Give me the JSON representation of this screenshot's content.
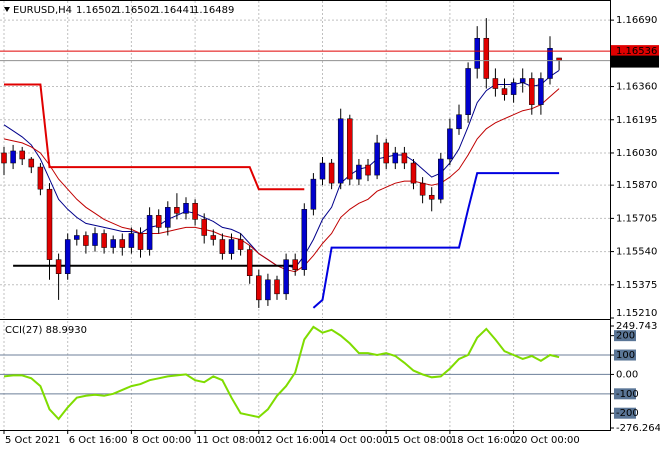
{
  "chart_data": [
    {
      "type": "candlestick",
      "title": "EURUSD,H4",
      "categories": [
        "5 Oct 2021",
        null,
        null,
        null,
        null,
        null,
        null,
        "6 Oct 16:00",
        null,
        null,
        null,
        null,
        null,
        null,
        "8 Oct 00:00",
        null,
        null,
        null,
        null,
        null,
        null,
        "11 Oct 08:00",
        null,
        null,
        null,
        null,
        null,
        null,
        "12 Oct 16:00",
        null,
        null,
        null,
        null,
        null,
        null,
        "14 Oct 00:00",
        null,
        null,
        null,
        null,
        null,
        null,
        "15 Oct 08:00",
        null,
        null,
        null,
        null,
        null,
        null,
        "18 Oct 16:00",
        null,
        null,
        null,
        null,
        null,
        null,
        "20 Oct 00:00",
        null,
        null,
        null,
        null,
        null
      ],
      "open": [
        1.1603,
        1.1598,
        1.1604,
        1.16,
        1.1596,
        1.1585,
        1.155,
        1.1543,
        1.156,
        1.1562,
        1.1557,
        1.1563,
        1.1556,
        1.156,
        1.1556,
        1.1563,
        1.1555,
        1.1572,
        1.1566,
        1.1576,
        1.1573,
        1.1578,
        1.157,
        1.1562,
        1.156,
        1.1553,
        1.156,
        1.1555,
        1.1542,
        1.153,
        1.154,
        1.1533,
        1.155,
        1.1545,
        1.1575,
        1.159,
        1.1598,
        1.1588,
        1.162,
        1.159,
        1.1597,
        1.1592,
        1.1608,
        1.1598,
        1.1603,
        1.1598,
        1.1588,
        1.1582,
        1.158,
        1.16,
        1.1615,
        1.1622,
        1.1645,
        1.166,
        1.164,
        1.1635,
        1.1632,
        1.1638,
        1.164,
        1.1627,
        1.164,
        1.16502
      ],
      "high": [
        1.1606,
        1.1607,
        1.1606,
        1.1601,
        1.1598,
        1.1588,
        1.1553,
        1.1563,
        1.1565,
        1.1564,
        1.1566,
        1.1565,
        1.1562,
        1.1563,
        1.1566,
        1.1566,
        1.1576,
        1.1575,
        1.1579,
        1.1583,
        1.1581,
        1.158,
        1.1573,
        1.1565,
        1.1563,
        1.1563,
        1.1563,
        1.1557,
        1.1545,
        1.1543,
        1.1542,
        1.1553,
        1.1553,
        1.1578,
        1.1593,
        1.1601,
        1.16,
        1.1625,
        1.1622,
        1.16,
        1.16,
        1.1612,
        1.161,
        1.1606,
        1.1606,
        1.16,
        1.1591,
        1.1586,
        1.1603,
        1.162,
        1.1627,
        1.1648,
        1.1666,
        1.167,
        1.1645,
        1.164,
        1.164,
        1.1645,
        1.1643,
        1.1643,
        1.1661,
        1.16502
      ],
      "low": [
        1.1592,
        1.1595,
        1.1597,
        1.1593,
        1.1582,
        1.154,
        1.153,
        1.154,
        1.1557,
        1.1553,
        1.1554,
        1.1553,
        1.1553,
        1.1552,
        1.1553,
        1.1551,
        1.1552,
        1.1563,
        1.1562,
        1.157,
        1.157,
        1.1567,
        1.1558,
        1.1557,
        1.155,
        1.155,
        1.1552,
        1.1538,
        1.1526,
        1.1527,
        1.153,
        1.153,
        1.1542,
        1.1542,
        1.1572,
        1.1587,
        1.1585,
        1.1585,
        1.1587,
        1.1587,
        1.1589,
        1.159,
        1.1595,
        1.1595,
        1.1595,
        1.1585,
        1.1578,
        1.1574,
        1.1578,
        1.1597,
        1.1612,
        1.1618,
        1.164,
        1.1635,
        1.1631,
        1.1629,
        1.1628,
        1.1633,
        1.1622,
        1.1622,
        1.1637,
        1.16441
      ],
      "close": [
        1.1598,
        1.1604,
        1.16,
        1.1596,
        1.1585,
        1.155,
        1.1543,
        1.156,
        1.1562,
        1.1557,
        1.1563,
        1.1556,
        1.156,
        1.1556,
        1.1563,
        1.1555,
        1.1572,
        1.1566,
        1.1576,
        1.1573,
        1.1578,
        1.157,
        1.1562,
        1.156,
        1.1553,
        1.156,
        1.1555,
        1.1542,
        1.153,
        1.154,
        1.1533,
        1.155,
        1.1545,
        1.1575,
        1.159,
        1.1598,
        1.1588,
        1.162,
        1.159,
        1.1597,
        1.1592,
        1.1608,
        1.1598,
        1.1603,
        1.1598,
        1.1588,
        1.1582,
        1.158,
        1.16,
        1.1615,
        1.1622,
        1.1645,
        1.166,
        1.164,
        1.1635,
        1.1632,
        1.1638,
        1.164,
        1.1627,
        1.164,
        1.1655,
        1.16489
      ],
      "up_color": "#0000cd",
      "down_color": "#e00000",
      "lines": [
        {
          "color": "#00008b",
          "values": [
            1.1617,
            1.1614,
            1.1611,
            1.1607,
            1.16,
            1.159,
            1.158,
            1.1575,
            1.1571,
            1.1568,
            1.1567,
            1.1566,
            1.1565,
            1.1564,
            1.1564,
            1.1563,
            1.1566,
            1.1567,
            1.157,
            1.1572,
            1.1574,
            1.1573,
            1.1571,
            1.1569,
            1.1566,
            1.1565,
            1.1563,
            1.1558,
            1.1553,
            1.155,
            1.1547,
            1.1547,
            1.1546,
            1.1552,
            1.156,
            1.157,
            1.1576,
            1.1588,
            1.1592,
            1.1595,
            1.1596,
            1.16,
            1.1601,
            1.1602,
            1.1602,
            1.1599,
            1.1595,
            1.1591,
            1.1593,
            1.1598,
            1.1605,
            1.1616,
            1.1628,
            1.1634,
            1.1637,
            1.1637,
            1.1637,
            1.1638,
            1.1636,
            1.1637,
            1.1641,
            1.1644
          ]
        },
        {
          "color": "#c00000",
          "values": [
            1.161,
            1.1609,
            1.1608,
            1.1606,
            1.1603,
            1.1597,
            1.159,
            1.1585,
            1.158,
            1.1576,
            1.1573,
            1.157,
            1.1568,
            1.1566,
            1.1565,
            1.1563,
            1.1563,
            1.1563,
            1.1564,
            1.1565,
            1.1566,
            1.1566,
            1.1565,
            1.1564,
            1.1562,
            1.1561,
            1.156,
            1.1557,
            1.1553,
            1.155,
            1.1547,
            1.1545,
            1.1544,
            1.1547,
            1.1552,
            1.1558,
            1.1563,
            1.1571,
            1.1575,
            1.1578,
            1.158,
            1.1584,
            1.1586,
            1.1588,
            1.1589,
            1.1589,
            1.1588,
            1.1587,
            1.1588,
            1.1591,
            1.1595,
            1.1602,
            1.161,
            1.1615,
            1.1618,
            1.162,
            1.1622,
            1.1624,
            1.1625,
            1.1627,
            1.1631,
            1.1635
          ]
        },
        {
          "color": "#e00000",
          "width": 2,
          "values": [
            1.1637,
            1.1637,
            1.1637,
            1.1637,
            1.1637,
            1.1596,
            1.1596,
            1.1596,
            1.1596,
            1.1596,
            1.1596,
            1.1596,
            1.1596,
            1.1596,
            1.1596,
            1.1596,
            1.1596,
            1.1596,
            1.1596,
            1.1596,
            1.1596,
            1.1596,
            1.1596,
            1.1596,
            1.1596,
            1.1596,
            1.1596,
            1.1596,
            1.1585,
            1.1585,
            1.1585,
            1.1585,
            1.1585,
            1.1585,
            null,
            null,
            null,
            null,
            null,
            null,
            null,
            null,
            null,
            null,
            null,
            null,
            null,
            null,
            null,
            null,
            null,
            null,
            null,
            null,
            null,
            null,
            null,
            null,
            null,
            null,
            null,
            null
          ]
        },
        {
          "color": "#000000",
          "width": 2,
          "values": [
            null,
            1.1547,
            1.1547,
            1.1547,
            1.1547,
            1.1547,
            1.1547,
            1.1547,
            1.1547,
            1.1547,
            1.1547,
            1.1547,
            1.1547,
            1.1547,
            1.1547,
            1.1547,
            1.1547,
            1.1547,
            1.1547,
            1.1547,
            1.1547,
            1.1547,
            1.1547,
            1.1547,
            1.1547,
            1.1547,
            1.1547,
            1.1547,
            1.1547,
            1.1547,
            1.1547,
            1.1547,
            1.1547,
            null,
            null,
            null,
            null,
            null,
            null,
            null,
            null,
            null,
            null,
            null,
            null,
            null,
            null,
            null,
            null,
            null,
            null,
            null,
            null,
            null,
            null,
            null,
            null,
            null,
            null,
            null,
            null,
            null
          ]
        },
        {
          "color": "#0000e0",
          "width": 2,
          "values": [
            null,
            null,
            null,
            null,
            null,
            null,
            null,
            null,
            null,
            null,
            null,
            null,
            null,
            null,
            null,
            null,
            null,
            null,
            null,
            null,
            null,
            null,
            null,
            null,
            null,
            null,
            null,
            null,
            null,
            null,
            null,
            null,
            null,
            null,
            1.1526,
            1.153,
            1.1556,
            1.1556,
            1.1556,
            1.1556,
            1.1556,
            1.1556,
            1.1556,
            1.1556,
            1.1556,
            1.1556,
            1.1556,
            1.1556,
            1.1556,
            1.1556,
            1.1556,
            1.1575,
            1.1593,
            1.1593,
            1.1593,
            1.1593,
            1.1593,
            1.1593,
            1.1593,
            1.1593,
            1.1593,
            1.1593
          ]
        }
      ],
      "ask": 1.16536,
      "ask_color": "#e00000",
      "ylim": [
        1.1521,
        1.1679
      ],
      "yticks": [
        {
          "value": 1.1669,
          "label": "1.16690"
        },
        {
          "value": 1.1636,
          "label": "1.16360"
        },
        {
          "value": 1.16195,
          "label": "1.16195"
        },
        {
          "value": 1.1603,
          "label": "1.16030"
        },
        {
          "value": 1.1587,
          "label": "1.15870"
        },
        {
          "value": 1.15705,
          "label": "1.15705"
        },
        {
          "value": 1.1554,
          "label": "1.15540"
        },
        {
          "value": 1.15375,
          "label": "1.15375"
        },
        {
          "value": 1.1521,
          "label": "1.15210"
        }
      ],
      "grid": true
    },
    {
      "type": "line",
      "title": "CCI(27) 88.9930",
      "color": "#7fdc00",
      "values": [
        -10,
        -5,
        -5,
        -20,
        -60,
        -180,
        -230,
        -170,
        -120,
        -110,
        -105,
        -110,
        -100,
        -80,
        -60,
        -50,
        -30,
        -20,
        -10,
        -5,
        0,
        -30,
        -40,
        -10,
        -30,
        -120,
        -200,
        -210,
        -220,
        -180,
        -110,
        -60,
        10,
        180,
        245,
        215,
        230,
        200,
        160,
        110,
        110,
        100,
        110,
        95,
        60,
        20,
        0,
        -15,
        -10,
        30,
        80,
        100,
        190,
        235,
        180,
        120,
        100,
        80,
        95,
        70,
        100,
        88.993
      ],
      "ylim": [
        -276.2644,
        249.743
      ],
      "yticks": [
        249.743,
        200,
        100,
        {
          "value": 0,
          "label": "0.00"
        },
        -100,
        -200,
        -276.2644
      ],
      "boxed_ticks": [
        200,
        100,
        -100,
        -200
      ],
      "levels": [
        100,
        0,
        -100
      ]
    }
  ]
}
